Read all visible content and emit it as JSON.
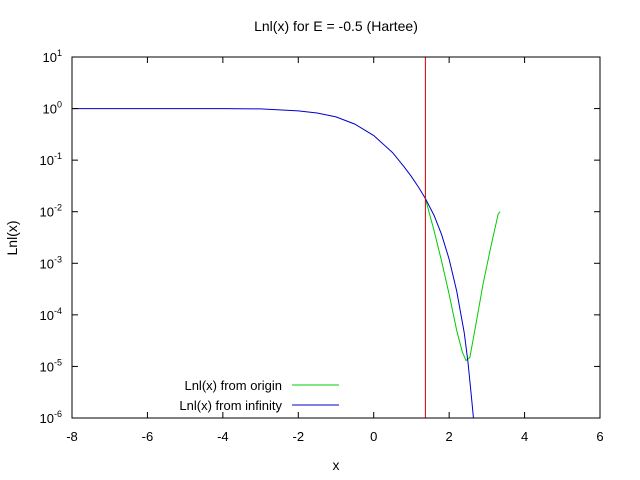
{
  "chart_data": {
    "type": "line",
    "title": "Lnl(x) for E = -0.5 (Hartee)",
    "xlabel": "x",
    "ylabel": "Lnl(x)",
    "xlim": [
      -8,
      6
    ],
    "ylim": [
      1e-06,
      10
    ],
    "y_scale": "log",
    "grid": false,
    "legend_position": "bottom-left",
    "x_ticks": [
      {
        "value": -8,
        "label": "-8"
      },
      {
        "value": -6,
        "label": "-6"
      },
      {
        "value": -4,
        "label": "-4"
      },
      {
        "value": -2,
        "label": "-2"
      },
      {
        "value": 0,
        "label": "0"
      },
      {
        "value": 2,
        "label": "2"
      },
      {
        "value": 4,
        "label": "4"
      },
      {
        "value": 6,
        "label": "6"
      }
    ],
    "y_ticks": [
      {
        "value": 10,
        "base": "10",
        "exp": "1"
      },
      {
        "value": 1,
        "base": "10",
        "exp": "0"
      },
      {
        "value": 0.1,
        "base": "10",
        "exp": "-1"
      },
      {
        "value": 0.01,
        "base": "10",
        "exp": "-2"
      },
      {
        "value": 0.001,
        "base": "10",
        "exp": "-3"
      },
      {
        "value": 0.0001,
        "base": "10",
        "exp": "-4"
      },
      {
        "value": 1e-05,
        "base": "10",
        "exp": "-5"
      },
      {
        "value": 1e-06,
        "base": "10",
        "exp": "-6"
      }
    ],
    "vertical_line": {
      "x": 1.37,
      "color": "#cc0000"
    },
    "series": [
      {
        "name": "Lnl(x) from origin",
        "color": "#00cc00",
        "x": [
          1.37,
          1.6,
          1.8,
          2.0,
          2.2,
          2.35,
          2.45,
          2.55,
          2.7,
          2.9,
          3.1,
          3.3,
          3.35
        ],
        "y": [
          0.018,
          0.0043,
          0.0011,
          0.00025,
          5e-05,
          1.9e-05,
          1.3e-05,
          1.5e-05,
          6e-05,
          0.0004,
          0.002,
          0.009,
          0.01
        ]
      },
      {
        "name": "Lnl(x) from infinity",
        "color": "#0000cc",
        "x": [
          -8,
          -6,
          -4,
          -3,
          -2,
          -1.5,
          -1,
          -0.5,
          0,
          0.5,
          0.8,
          1.0,
          1.2,
          1.37,
          1.6,
          1.8,
          2.0,
          2.2,
          2.4,
          2.5,
          2.6,
          2.65
        ],
        "y": [
          1.0,
          1.0,
          0.997,
          0.985,
          0.9,
          0.82,
          0.69,
          0.5,
          0.3,
          0.14,
          0.075,
          0.048,
          0.029,
          0.018,
          0.0085,
          0.0036,
          0.0012,
          0.00029,
          4.5e-05,
          1.2e-05,
          2.2e-06,
          9e-07
        ]
      }
    ]
  }
}
